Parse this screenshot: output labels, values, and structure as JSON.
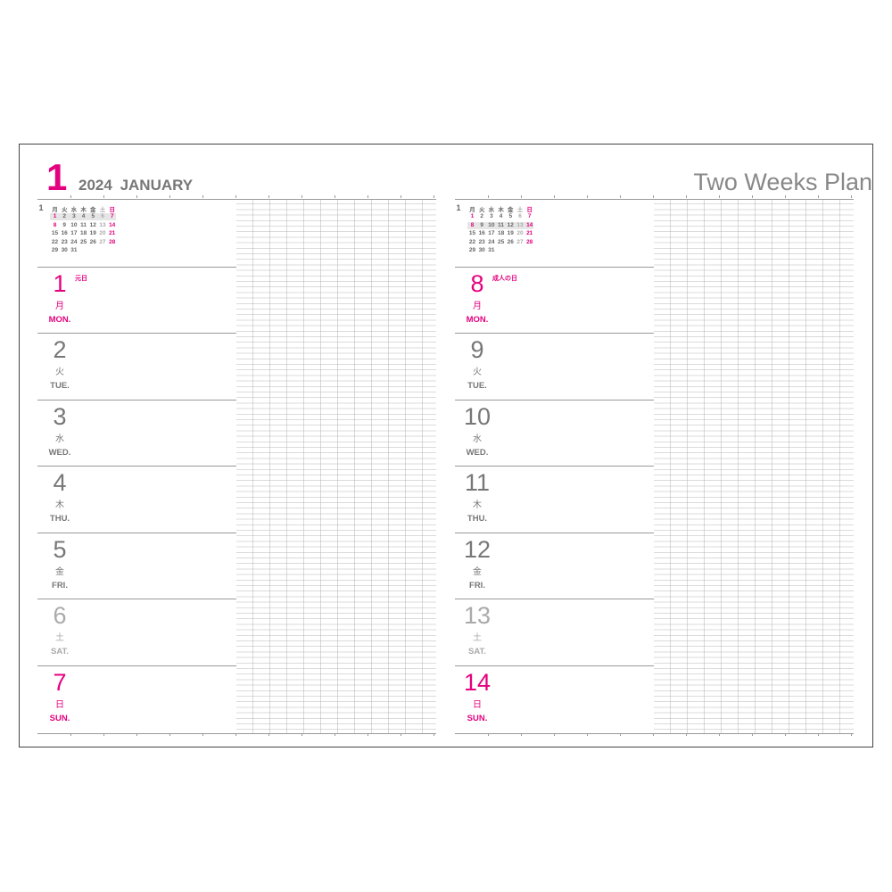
{
  "header": {
    "month_number": "1",
    "year": "2024",
    "month_name": "JANUARY",
    "title": "Two Weeks Plan"
  },
  "colors": {
    "accent": "#e4007f",
    "weekday": "#777777",
    "saturday": "#aaaaaa"
  },
  "mini_calendar": {
    "month": "1",
    "weekday_headers": [
      "月",
      "火",
      "水",
      "木",
      "金",
      "土",
      "日"
    ],
    "weeks": [
      [
        "1",
        "2",
        "3",
        "4",
        "5",
        "6",
        "7"
      ],
      [
        "8",
        "9",
        "10",
        "11",
        "12",
        "13",
        "14"
      ],
      [
        "15",
        "16",
        "17",
        "18",
        "19",
        "20",
        "21"
      ],
      [
        "22",
        "23",
        "24",
        "25",
        "26",
        "27",
        "28"
      ],
      [
        "29",
        "30",
        "31"
      ]
    ],
    "holidays": [
      "1",
      "8"
    ]
  },
  "pages": [
    {
      "highlight_week": 0,
      "days": [
        {
          "num": "1",
          "kanji": "月",
          "en": "MON.",
          "type": "holiday",
          "holiday": "元日"
        },
        {
          "num": "2",
          "kanji": "火",
          "en": "TUE.",
          "type": "weekday"
        },
        {
          "num": "3",
          "kanji": "水",
          "en": "WED.",
          "type": "weekday"
        },
        {
          "num": "4",
          "kanji": "木",
          "en": "THU.",
          "type": "weekday"
        },
        {
          "num": "5",
          "kanji": "金",
          "en": "FRI.",
          "type": "weekday"
        },
        {
          "num": "6",
          "kanji": "土",
          "en": "SAT.",
          "type": "sat"
        },
        {
          "num": "7",
          "kanji": "日",
          "en": "SUN.",
          "type": "sun"
        }
      ]
    },
    {
      "highlight_week": 1,
      "days": [
        {
          "num": "8",
          "kanji": "月",
          "en": "MON.",
          "type": "holiday",
          "holiday": "成人の日"
        },
        {
          "num": "9",
          "kanji": "火",
          "en": "TUE.",
          "type": "weekday"
        },
        {
          "num": "10",
          "kanji": "水",
          "en": "WED.",
          "type": "weekday"
        },
        {
          "num": "11",
          "kanji": "木",
          "en": "THU.",
          "type": "weekday"
        },
        {
          "num": "12",
          "kanji": "金",
          "en": "FRI.",
          "type": "weekday"
        },
        {
          "num": "13",
          "kanji": "土",
          "en": "SAT.",
          "type": "sat"
        },
        {
          "num": "14",
          "kanji": "日",
          "en": "SUN.",
          "type": "sun"
        }
      ]
    }
  ]
}
